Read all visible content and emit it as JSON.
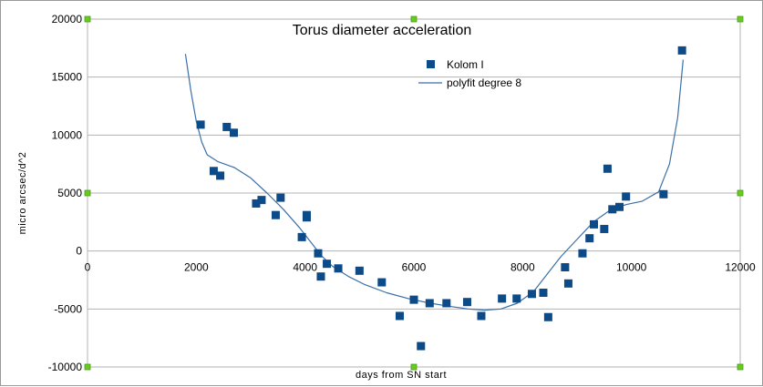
{
  "chart_data": {
    "type": "scatter",
    "title": "Torus diameter acceleration",
    "xlabel": "days from SN start",
    "ylabel": "micro arcsec/d^2",
    "xlim": [
      0,
      12000
    ],
    "ylim": [
      -10000,
      20000
    ],
    "x_ticks": [
      0,
      2000,
      4000,
      6000,
      8000,
      10000,
      12000
    ],
    "y_ticks": [
      -10000,
      -5000,
      0,
      5000,
      10000,
      15000,
      20000
    ],
    "x_tick_labels": [
      "0",
      "2000",
      "4000",
      "6000",
      "8000",
      "10000",
      "12000"
    ],
    "y_tick_labels": [
      "-10000",
      "-5000",
      "0",
      "5000",
      "10000",
      "15000",
      "20000"
    ],
    "grid": "horizontal",
    "legend_position": "top-center",
    "colors": {
      "marker": "#0c4a88",
      "line": "#3a6fa8",
      "grid": "#b3b3b3",
      "handle": "#66cc22"
    },
    "series": [
      {
        "name": "Kolom I",
        "kind": "scatter",
        "points": [
          [
            2080,
            10900
          ],
          [
            2320,
            6900
          ],
          [
            2440,
            6500
          ],
          [
            2560,
            10700
          ],
          [
            2690,
            10200
          ],
          [
            3100,
            4100
          ],
          [
            3200,
            4400
          ],
          [
            3460,
            3100
          ],
          [
            3550,
            4600
          ],
          [
            3940,
            1200
          ],
          [
            4030,
            2900
          ],
          [
            4030,
            3100
          ],
          [
            4240,
            -200
          ],
          [
            4290,
            -2200
          ],
          [
            4400,
            -1100
          ],
          [
            4610,
            -1500
          ],
          [
            5000,
            -1700
          ],
          [
            5410,
            -2700
          ],
          [
            5740,
            -5600
          ],
          [
            6000,
            -4200
          ],
          [
            6130,
            -8200
          ],
          [
            6290,
            -4500
          ],
          [
            6600,
            -4500
          ],
          [
            6980,
            -4400
          ],
          [
            7240,
            -5600
          ],
          [
            7620,
            -4100
          ],
          [
            7890,
            -4100
          ],
          [
            8170,
            -3700
          ],
          [
            8380,
            -3600
          ],
          [
            8470,
            -5700
          ],
          [
            8780,
            -1400
          ],
          [
            8840,
            -2800
          ],
          [
            9100,
            -200
          ],
          [
            9230,
            1100
          ],
          [
            9310,
            2300
          ],
          [
            9500,
            1900
          ],
          [
            9560,
            7100
          ],
          [
            9650,
            3600
          ],
          [
            9780,
            3800
          ],
          [
            9900,
            4700
          ],
          [
            10590,
            4900
          ],
          [
            10930,
            17300
          ]
        ]
      },
      {
        "name": "polyfit degree 8",
        "kind": "line",
        "points": [
          [
            1800,
            17000
          ],
          [
            1900,
            13800
          ],
          [
            2000,
            11200
          ],
          [
            2100,
            9400
          ],
          [
            2200,
            8300
          ],
          [
            2400,
            7700
          ],
          [
            2700,
            7200
          ],
          [
            3000,
            6300
          ],
          [
            3300,
            5000
          ],
          [
            3600,
            3600
          ],
          [
            3900,
            2000
          ],
          [
            4100,
            800
          ],
          [
            4300,
            -400
          ],
          [
            4500,
            -1300
          ],
          [
            4800,
            -2200
          ],
          [
            5100,
            -2900
          ],
          [
            5500,
            -3600
          ],
          [
            5900,
            -4100
          ],
          [
            6300,
            -4500
          ],
          [
            6700,
            -4800
          ],
          [
            7000,
            -5000
          ],
          [
            7300,
            -5100
          ],
          [
            7600,
            -5000
          ],
          [
            7900,
            -4500
          ],
          [
            8200,
            -3500
          ],
          [
            8500,
            -1700
          ],
          [
            8700,
            -500
          ],
          [
            9000,
            1000
          ],
          [
            9300,
            2500
          ],
          [
            9600,
            3500
          ],
          [
            9900,
            4000
          ],
          [
            10200,
            4300
          ],
          [
            10500,
            5100
          ],
          [
            10700,
            7500
          ],
          [
            10850,
            11500
          ],
          [
            10950,
            16500
          ]
        ]
      }
    ]
  }
}
